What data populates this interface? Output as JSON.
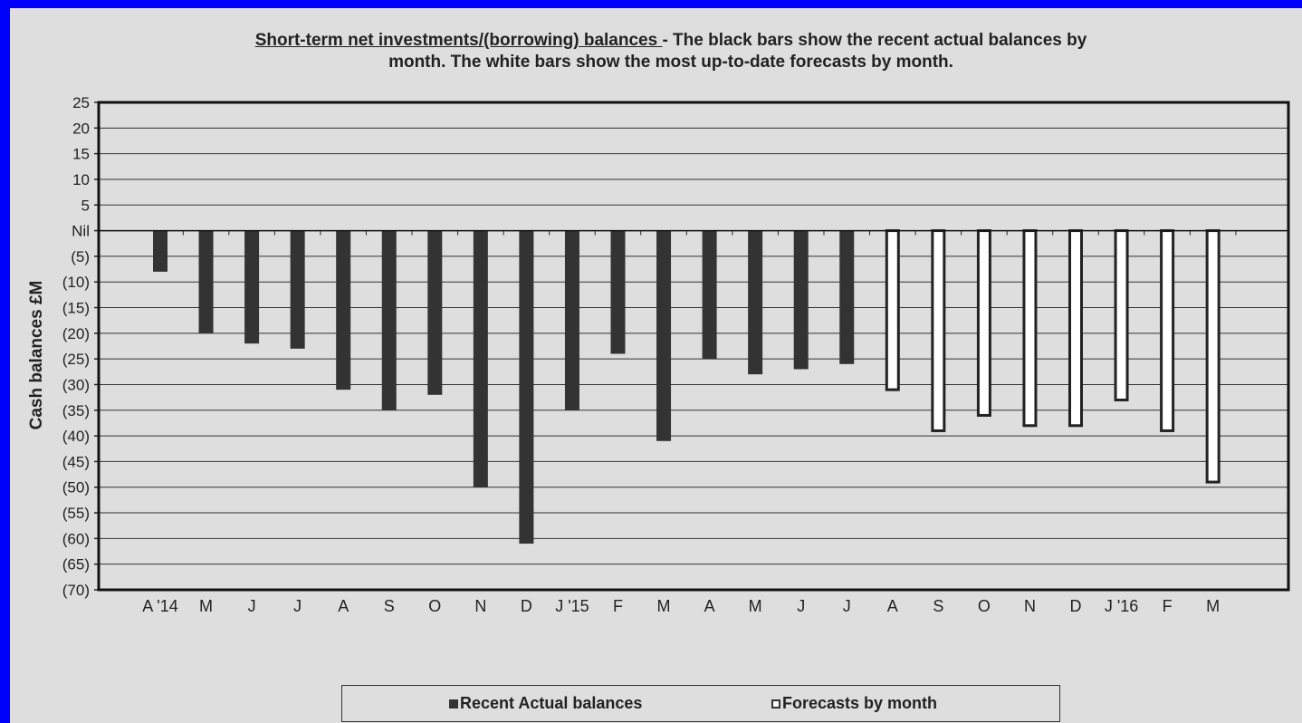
{
  "title": {
    "underlined": "Short-term net investments/(borrowing) balances ",
    "rest_line1": "- The black bars show the recent actual balances by",
    "line2": "month. The white bars show the most up-to-date forecasts by month."
  },
  "colors": {
    "border": "#0000ff",
    "background": "#dedede",
    "actual_fill": "#333333",
    "forecast_fill": "#ffffff"
  },
  "legend": {
    "actual": "Recent Actual balances",
    "forecast": "Forecasts by month"
  },
  "chart_data": {
    "type": "bar",
    "title": "Short-term net investments/(borrowing) balances - The black bars show the recent actual balances by month. The white bars show the most up-to-date forecasts by month.",
    "xlabel": "",
    "ylabel": "Cash balances £M",
    "ylim": [
      -70,
      25
    ],
    "yticks": [
      25,
      20,
      15,
      10,
      5,
      0,
      -5,
      -10,
      -15,
      -20,
      -25,
      -30,
      -35,
      -40,
      -45,
      -50,
      -55,
      -60,
      -65,
      -70
    ],
    "ytick_labels": [
      "25",
      "20",
      "15",
      "10",
      "5",
      "Nil",
      "(5)",
      "(10)",
      "(15)",
      "(20)",
      "(25)",
      "(30)",
      "(35)",
      "(40)",
      "(45)",
      "(50)",
      "(55)",
      "(60)",
      "(65)",
      "(70)"
    ],
    "grid": true,
    "legend_position": "bottom",
    "categories": [
      "A '14",
      "M",
      "J",
      "J",
      "A",
      "S",
      "O",
      "N",
      "D",
      "J '15",
      "F",
      "M",
      "A",
      "M",
      "J",
      "J",
      "A",
      "S",
      "O",
      "N",
      "D",
      "J '16",
      "F",
      "M"
    ],
    "series": [
      {
        "name": "Recent Actual balances",
        "values": [
          -8,
          -20,
          -22,
          -23,
          -31,
          -35,
          -32,
          -50,
          -61,
          -35,
          -24,
          -41,
          -25,
          -28,
          -27,
          -26,
          null,
          null,
          null,
          null,
          null,
          null,
          null,
          null
        ]
      },
      {
        "name": "Forecasts by month",
        "values": [
          null,
          null,
          null,
          null,
          null,
          null,
          null,
          null,
          null,
          null,
          null,
          null,
          null,
          null,
          null,
          null,
          -31,
          -39,
          -36,
          -38,
          -38,
          -33,
          -39,
          -49
        ]
      }
    ]
  }
}
